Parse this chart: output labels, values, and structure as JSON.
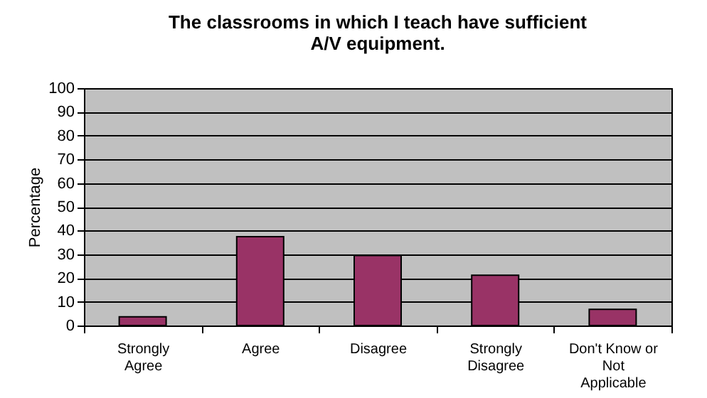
{
  "chart_data": {
    "type": "bar",
    "title": "The classrooms in which I teach have sufficient A/V equipment.",
    "ylabel": "Percentage",
    "categories": [
      "Strongly Agree",
      "Agree",
      "Disagree",
      "Strongly Disagree",
      "Don't Know or Not Applicable"
    ],
    "values": [
      3.7,
      37.4,
      29.5,
      21.2,
      6.8
    ],
    "color": "#993366",
    "ylim": [
      0,
      100
    ],
    "yticks": [
      0,
      10,
      20,
      30,
      40,
      50,
      60,
      70,
      80,
      90,
      100
    ],
    "grid": "y"
  }
}
